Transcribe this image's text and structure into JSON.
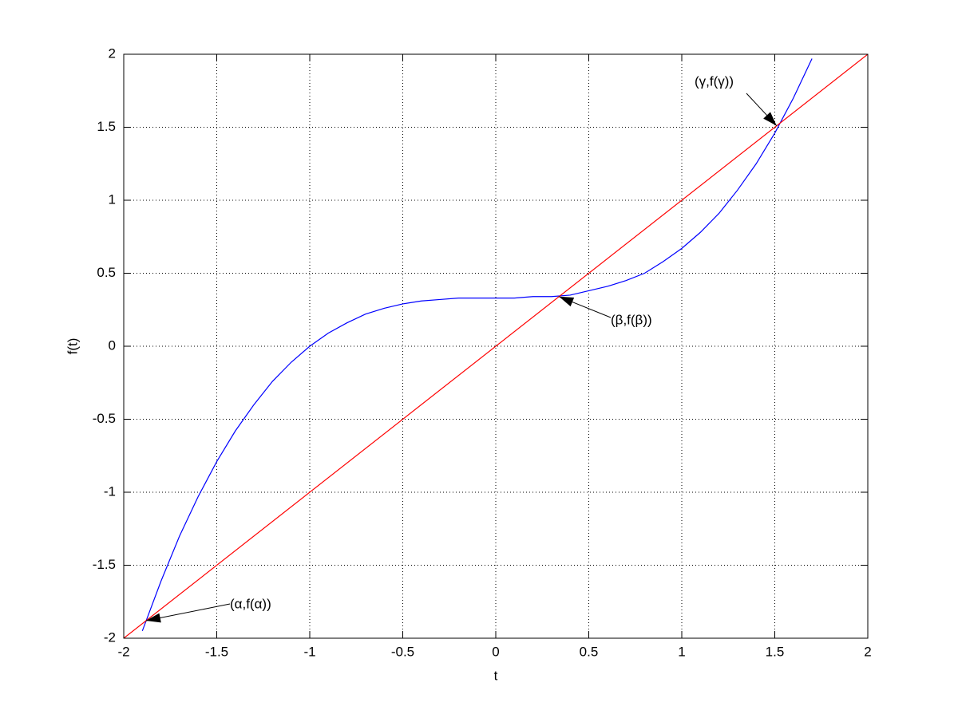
{
  "chart_data": {
    "type": "line",
    "xlabel": "t",
    "ylabel": "f(t)",
    "xlim": [
      -2,
      2
    ],
    "ylim": [
      -2,
      2
    ],
    "xticks": [
      -2,
      -1.5,
      -1,
      -0.5,
      0,
      0.5,
      1,
      1.5,
      2
    ],
    "yticks": [
      -2,
      -1.5,
      -1,
      -0.5,
      0,
      0.5,
      1,
      1.5,
      2
    ],
    "grid": true,
    "series": [
      {
        "color": "#0000ff",
        "x": [
          -1.9,
          -1.8,
          -1.7,
          -1.6,
          -1.5,
          -1.4,
          -1.3,
          -1.2,
          -1.1,
          -1.0,
          -0.9,
          -0.8,
          -0.7,
          -0.6,
          -0.5,
          -0.4,
          -0.3,
          -0.2,
          -0.1,
          0,
          0.1,
          0.2,
          0.3,
          0.4,
          0.5,
          0.6,
          0.7,
          0.8,
          0.9,
          1.0,
          1.1,
          1.2,
          1.3,
          1.4,
          1.5,
          1.6,
          1.7
        ],
        "values": [
          -1.95,
          -1.61,
          -1.3,
          -1.03,
          -0.79,
          -0.58,
          -0.4,
          -0.24,
          -0.11,
          0,
          0.09,
          0.16,
          0.22,
          0.26,
          0.29,
          0.31,
          0.32,
          0.33,
          0.33,
          0.33,
          0.33,
          0.34,
          0.34,
          0.35,
          0.38,
          0.41,
          0.45,
          0.5,
          0.58,
          0.67,
          0.78,
          0.91,
          1.07,
          1.25,
          1.46,
          1.7,
          1.97
        ]
      },
      {
        "color": "#ff0000",
        "x": [
          -2,
          2
        ],
        "values": [
          -2,
          2
        ]
      }
    ],
    "annotations": [
      {
        "text": "(α,f(α))",
        "x": -1.88,
        "y": -1.88
      },
      {
        "text": "(β,f(β))",
        "x": 0.34,
        "y": 0.34
      },
      {
        "text": "(γ,f(γ))",
        "x": 1.51,
        "y": 1.51
      }
    ]
  }
}
